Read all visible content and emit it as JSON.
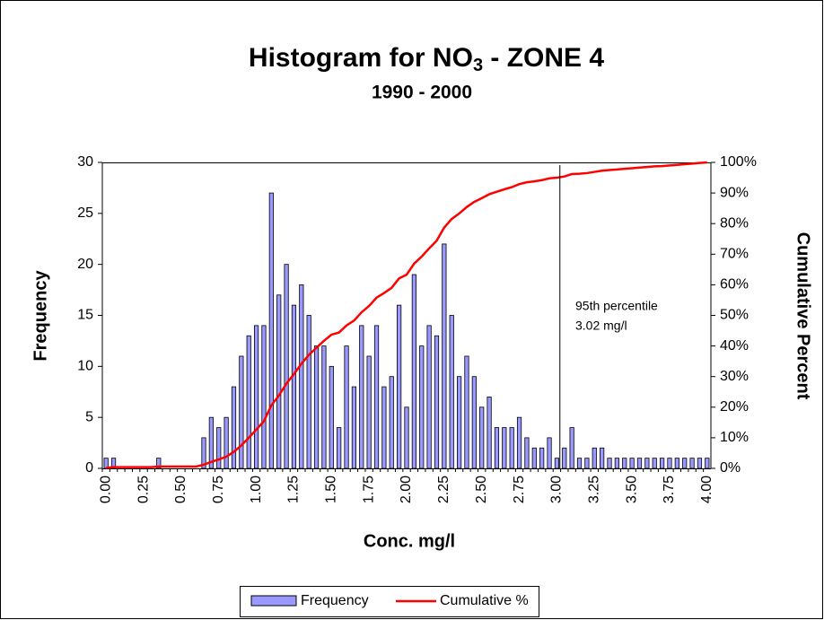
{
  "chart_data": {
    "type": "bar",
    "title": {
      "text": "Histogram for NO",
      "subscript": "3",
      "rest": " - ZONE 4"
    },
    "subtitle": "1990 - 2000",
    "x_label": "Conc. mg/l",
    "y_label": "Frequency",
    "y2_label": "Cumulative Percent",
    "categories": [
      "0.00",
      null,
      null,
      null,
      null,
      "0.25",
      null,
      null,
      null,
      null,
      "0.50",
      null,
      null,
      null,
      null,
      "0.75",
      null,
      null,
      null,
      null,
      "1.00",
      null,
      null,
      null,
      null,
      "1.25",
      null,
      null,
      null,
      null,
      "1.50",
      null,
      null,
      null,
      null,
      "1.75",
      null,
      null,
      null,
      null,
      "2.00",
      null,
      null,
      null,
      null,
      "2.25",
      null,
      null,
      null,
      null,
      "2.50",
      null,
      null,
      null,
      null,
      "2.75",
      null,
      null,
      null,
      null,
      "3.00",
      null,
      null,
      null,
      null,
      "3.25",
      null,
      null,
      null,
      null,
      "3.50",
      null,
      null,
      null,
      null,
      "3.75",
      null,
      null,
      null,
      null,
      "4.00"
    ],
    "series": [
      {
        "name": "Frequency",
        "color": "#9999ff",
        "values": [
          1,
          1,
          0,
          0,
          0,
          0,
          0,
          1,
          0,
          0,
          0,
          0,
          0,
          3,
          5,
          4,
          5,
          8,
          11,
          13,
          14,
          14,
          27,
          17,
          20,
          16,
          18,
          15,
          12,
          12,
          10,
          4,
          12,
          8,
          14,
          11,
          14,
          8,
          9,
          16,
          6,
          19,
          12,
          14,
          13,
          22,
          15,
          9,
          11,
          9,
          6,
          7,
          4,
          4,
          4,
          5,
          3,
          2,
          2,
          3,
          1,
          2,
          4,
          1,
          1,
          2,
          2,
          1,
          1,
          1,
          1,
          1,
          1,
          1,
          1,
          1,
          1,
          1,
          1,
          1,
          1
        ]
      },
      {
        "name": "Cumulative %",
        "color": "#ff0000",
        "axis": "y2",
        "values": [
          0.2,
          0.4,
          0.4,
          0.4,
          0.4,
          0.4,
          0.4,
          0.6,
          0.6,
          0.6,
          0.6,
          0.6,
          0.6,
          1.2,
          2.1,
          2.9,
          3.8,
          5.4,
          7.5,
          10.0,
          12.7,
          15.4,
          20.6,
          23.8,
          27.7,
          30.8,
          34.2,
          37.1,
          39.4,
          41.7,
          43.7,
          44.4,
          46.7,
          48.3,
          51.0,
          53.1,
          55.8,
          57.3,
          59.0,
          62.1,
          63.3,
          66.9,
          69.2,
          71.9,
          74.4,
          78.7,
          81.5,
          83.3,
          85.4,
          87.1,
          88.3,
          89.6,
          90.4,
          91.2,
          91.9,
          92.9,
          93.5,
          93.8,
          94.2,
          94.8,
          95.0,
          95.4,
          96.2,
          96.3,
          96.5,
          96.9,
          97.3,
          97.5,
          97.7,
          97.9,
          98.1,
          98.3,
          98.5,
          98.7,
          98.8,
          99.0,
          99.2,
          99.4,
          99.6,
          99.8,
          100.0
        ]
      }
    ],
    "ylim": [
      0,
      30
    ],
    "yticks": [
      0,
      5,
      10,
      15,
      20,
      25,
      30
    ],
    "y2lim": [
      0,
      100
    ],
    "y2ticks": [
      {
        "value": 0,
        "label": "0%"
      },
      {
        "value": 10,
        "label": "10%"
      },
      {
        "value": 20,
        "label": "20%"
      },
      {
        "value": 30,
        "label": "30%"
      },
      {
        "value": 40,
        "label": "40%"
      },
      {
        "value": 50,
        "label": "50%"
      },
      {
        "value": 60,
        "label": "60%"
      },
      {
        "value": 70,
        "label": "70%"
      },
      {
        "value": 80,
        "label": "80%"
      },
      {
        "value": 90,
        "label": "90%"
      },
      {
        "value": 100,
        "label": "100%"
      }
    ],
    "marker": {
      "value": 3.02,
      "lines": [
        "95th percentile",
        "3.02 mg/l"
      ]
    },
    "legend": "bottom"
  }
}
